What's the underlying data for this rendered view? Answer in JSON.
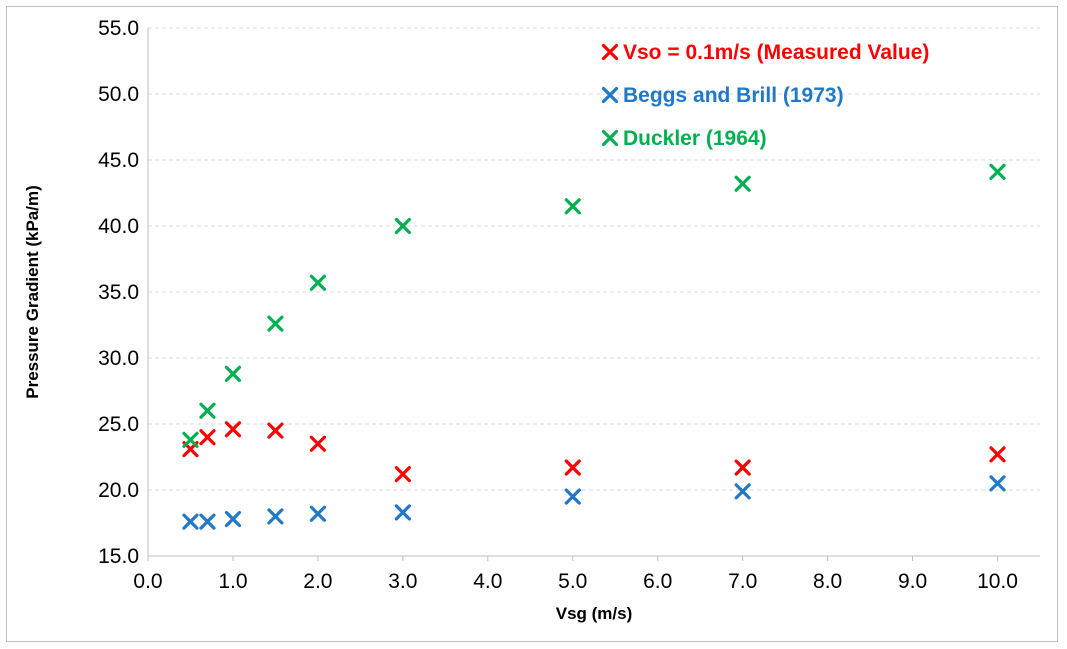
{
  "chart_data": {
    "type": "scatter",
    "title": "",
    "xlabel": "Vsg (m/s)",
    "ylabel": "Pressure Gradient (kPa/m)",
    "xlim": [
      0,
      10.5
    ],
    "ylim": [
      15,
      55
    ],
    "x_ticks": [
      "0.0",
      "1.0",
      "2.0",
      "3.0",
      "4.0",
      "5.0",
      "6.0",
      "7.0",
      "8.0",
      "9.0",
      "10.0"
    ],
    "y_ticks": [
      "15.0",
      "20.0",
      "25.0",
      "30.0",
      "35.0",
      "40.0",
      "45.0",
      "50.0",
      "55.0"
    ],
    "grid": "horizontal dashed",
    "legend_position": "top-right",
    "marker": "x",
    "series": [
      {
        "name": "Vso = 0.1m/s (Measured Value)",
        "color": "#ff0000",
        "x": [
          0.5,
          0.7,
          1.0,
          1.5,
          2.0,
          3.0,
          5.0,
          7.0,
          10.0
        ],
        "y": [
          23.1,
          24.0,
          24.6,
          24.5,
          23.5,
          21.2,
          21.7,
          21.7,
          22.7
        ]
      },
      {
        "name": "Beggs and Brill (1973)",
        "color": "#1f78c8",
        "x": [
          0.5,
          0.7,
          1.0,
          1.5,
          2.0,
          3.0,
          5.0,
          7.0,
          10.0
        ],
        "y": [
          17.6,
          17.6,
          17.8,
          18.0,
          18.2,
          18.3,
          19.5,
          19.9,
          20.5
        ]
      },
      {
        "name": "Duckler (1964)",
        "color": "#00b050",
        "x": [
          0.5,
          0.7,
          1.0,
          1.5,
          2.0,
          3.0,
          5.0,
          7.0,
          10.0
        ],
        "y": [
          23.8,
          26.0,
          28.8,
          32.6,
          35.7,
          40.0,
          41.5,
          43.2,
          44.1
        ]
      }
    ]
  }
}
